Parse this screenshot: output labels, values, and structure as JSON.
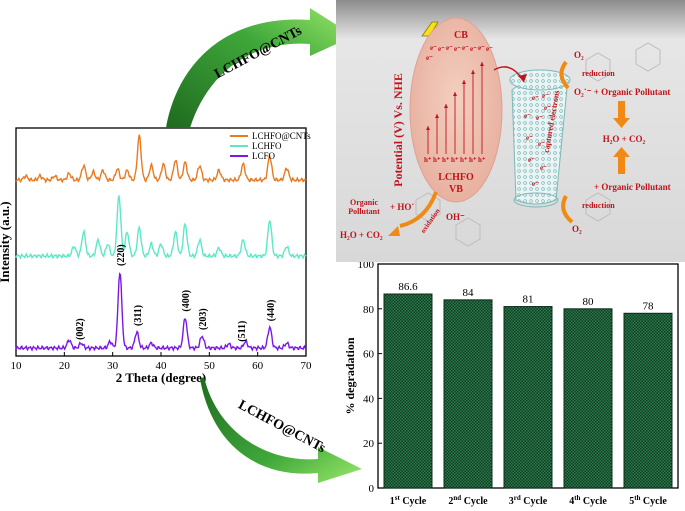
{
  "colors": {
    "lchfo_cnts": "#E87A22",
    "lchfo": "#5EE8C8",
    "lcfo": "#7B18E8",
    "bar_fill": "#1E5C3A",
    "bar_edge": "#0B2C18",
    "arrow_green_dark": "#1F6A1F",
    "arrow_green_light": "#79D84B",
    "mechanism_red": "#C0141C",
    "mechanism_orange": "#F08A14"
  },
  "arrows": {
    "top_label": "LCHFO@CNTs",
    "bottom_label": "LCHFO@CNTs"
  },
  "mechanism": {
    "cb_label": "CB",
    "vb_label": "VB",
    "material_label": "LCHFO",
    "axis_label": "Potential (V) Vs. NHE",
    "electron_symbol": "e⁻",
    "hole_symbol": "h⁺",
    "captured_label": "captured electrons",
    "o2_label": "O₂",
    "reduction_label": "reduction",
    "superoxide_label": "O₂˙⁻ + Organic Pollutant",
    "products_label": "H₂O + CO₂",
    "hydroxyl_label": "+ HO˙",
    "oxidation_label": "oxidation",
    "hydroxide_label": "OH⁻",
    "pollutant_label_1": "Organic",
    "pollutant_label_2": "Pollutant",
    "vb_products_label": "H₂O + CO₂",
    "organic_pollutant_label": "+ Organic Pollutant",
    "icon": "lightning-bolt-icon"
  },
  "chart_data": [
    {
      "type": "line",
      "xlabel": "2 Theta (degree)",
      "ylabel": "Intensity (a.u.)",
      "xlim": [
        10,
        70
      ],
      "xticks": [
        "10",
        "20",
        "30",
        "40",
        "50",
        "60",
        "70"
      ],
      "legend_position": "top-right",
      "series": [
        {
          "name": "LCHFO@CNTs",
          "color": "#E87A22",
          "offset": 2.1,
          "peaks": [
            [
              12,
              0.05
            ],
            [
              15,
              0.05
            ],
            [
              18,
              0.05
            ],
            [
              21,
              0.08
            ],
            [
              24,
              0.18
            ],
            [
              26,
              0.1
            ],
            [
              28,
              0.12
            ],
            [
              31,
              0.14
            ],
            [
              33,
              0.12
            ],
            [
              35.5,
              0.55
            ],
            [
              38,
              0.18
            ],
            [
              40.5,
              0.2
            ],
            [
              43,
              0.25
            ],
            [
              45,
              0.22
            ],
            [
              48,
              0.18
            ],
            [
              52,
              0.12
            ],
            [
              57,
              0.2
            ],
            [
              62.5,
              0.3
            ],
            [
              66,
              0.15
            ]
          ]
        },
        {
          "name": "LCHFO",
          "color": "#5EE8C8",
          "offset": 1.15,
          "peaks": [
            [
              22,
              0.12
            ],
            [
              24,
              0.3
            ],
            [
              27,
              0.2
            ],
            [
              29,
              0.15
            ],
            [
              31.3,
              0.75
            ],
            [
              33,
              0.3
            ],
            [
              35.5,
              0.35
            ],
            [
              38,
              0.15
            ],
            [
              40,
              0.15
            ],
            [
              43,
              0.3
            ],
            [
              45,
              0.4
            ],
            [
              48,
              0.2
            ],
            [
              52,
              0.1
            ],
            [
              57,
              0.2
            ],
            [
              62.5,
              0.45
            ],
            [
              66,
              0.12
            ]
          ]
        },
        {
          "name": "LCFO",
          "color": "#7B18E8",
          "offset": 0,
          "peaks": [
            [
              21,
              0.1
            ],
            [
              23.5,
              0.06
            ],
            [
              29.5,
              0.08
            ],
            [
              31.5,
              0.95
            ],
            [
              35,
              0.2
            ],
            [
              38,
              0.06
            ],
            [
              45,
              0.38
            ],
            [
              48.5,
              0.15
            ],
            [
              54,
              0.05
            ],
            [
              57.5,
              0.08
            ],
            [
              62.5,
              0.26
            ],
            [
              66,
              0.06
            ]
          ]
        }
      ],
      "annotations": [
        {
          "text": "(002)",
          "x": 23
        },
        {
          "text": "(220)",
          "x": 31.5
        },
        {
          "text": "(311)",
          "x": 35
        },
        {
          "text": "(400)",
          "x": 45
        },
        {
          "text": "(203)",
          "x": 48.5
        },
        {
          "text": "(511)",
          "x": 56.5
        },
        {
          "text": "(440)",
          "x": 62.5
        }
      ]
    },
    {
      "type": "bar",
      "ylabel": "% degradation",
      "ylim": [
        0,
        100
      ],
      "yticks": [
        "0",
        "20",
        "40",
        "60",
        "80",
        "100"
      ],
      "categories": [
        {
          "num": "1",
          "sup": "st",
          "word": " Cycle"
        },
        {
          "num": "2",
          "sup": "nd",
          "word": " Cycle"
        },
        {
          "num": "3",
          "sup": "rd",
          "word": " Cycle"
        },
        {
          "num": "4",
          "sup": "th",
          "word": " Cycle"
        },
        {
          "num": "5",
          "sup": "th",
          "word": " Cycle"
        }
      ],
      "values": [
        86.6,
        84,
        81,
        80,
        78
      ],
      "value_labels": [
        "86.6",
        "84",
        "81",
        "80",
        "78"
      ]
    }
  ]
}
